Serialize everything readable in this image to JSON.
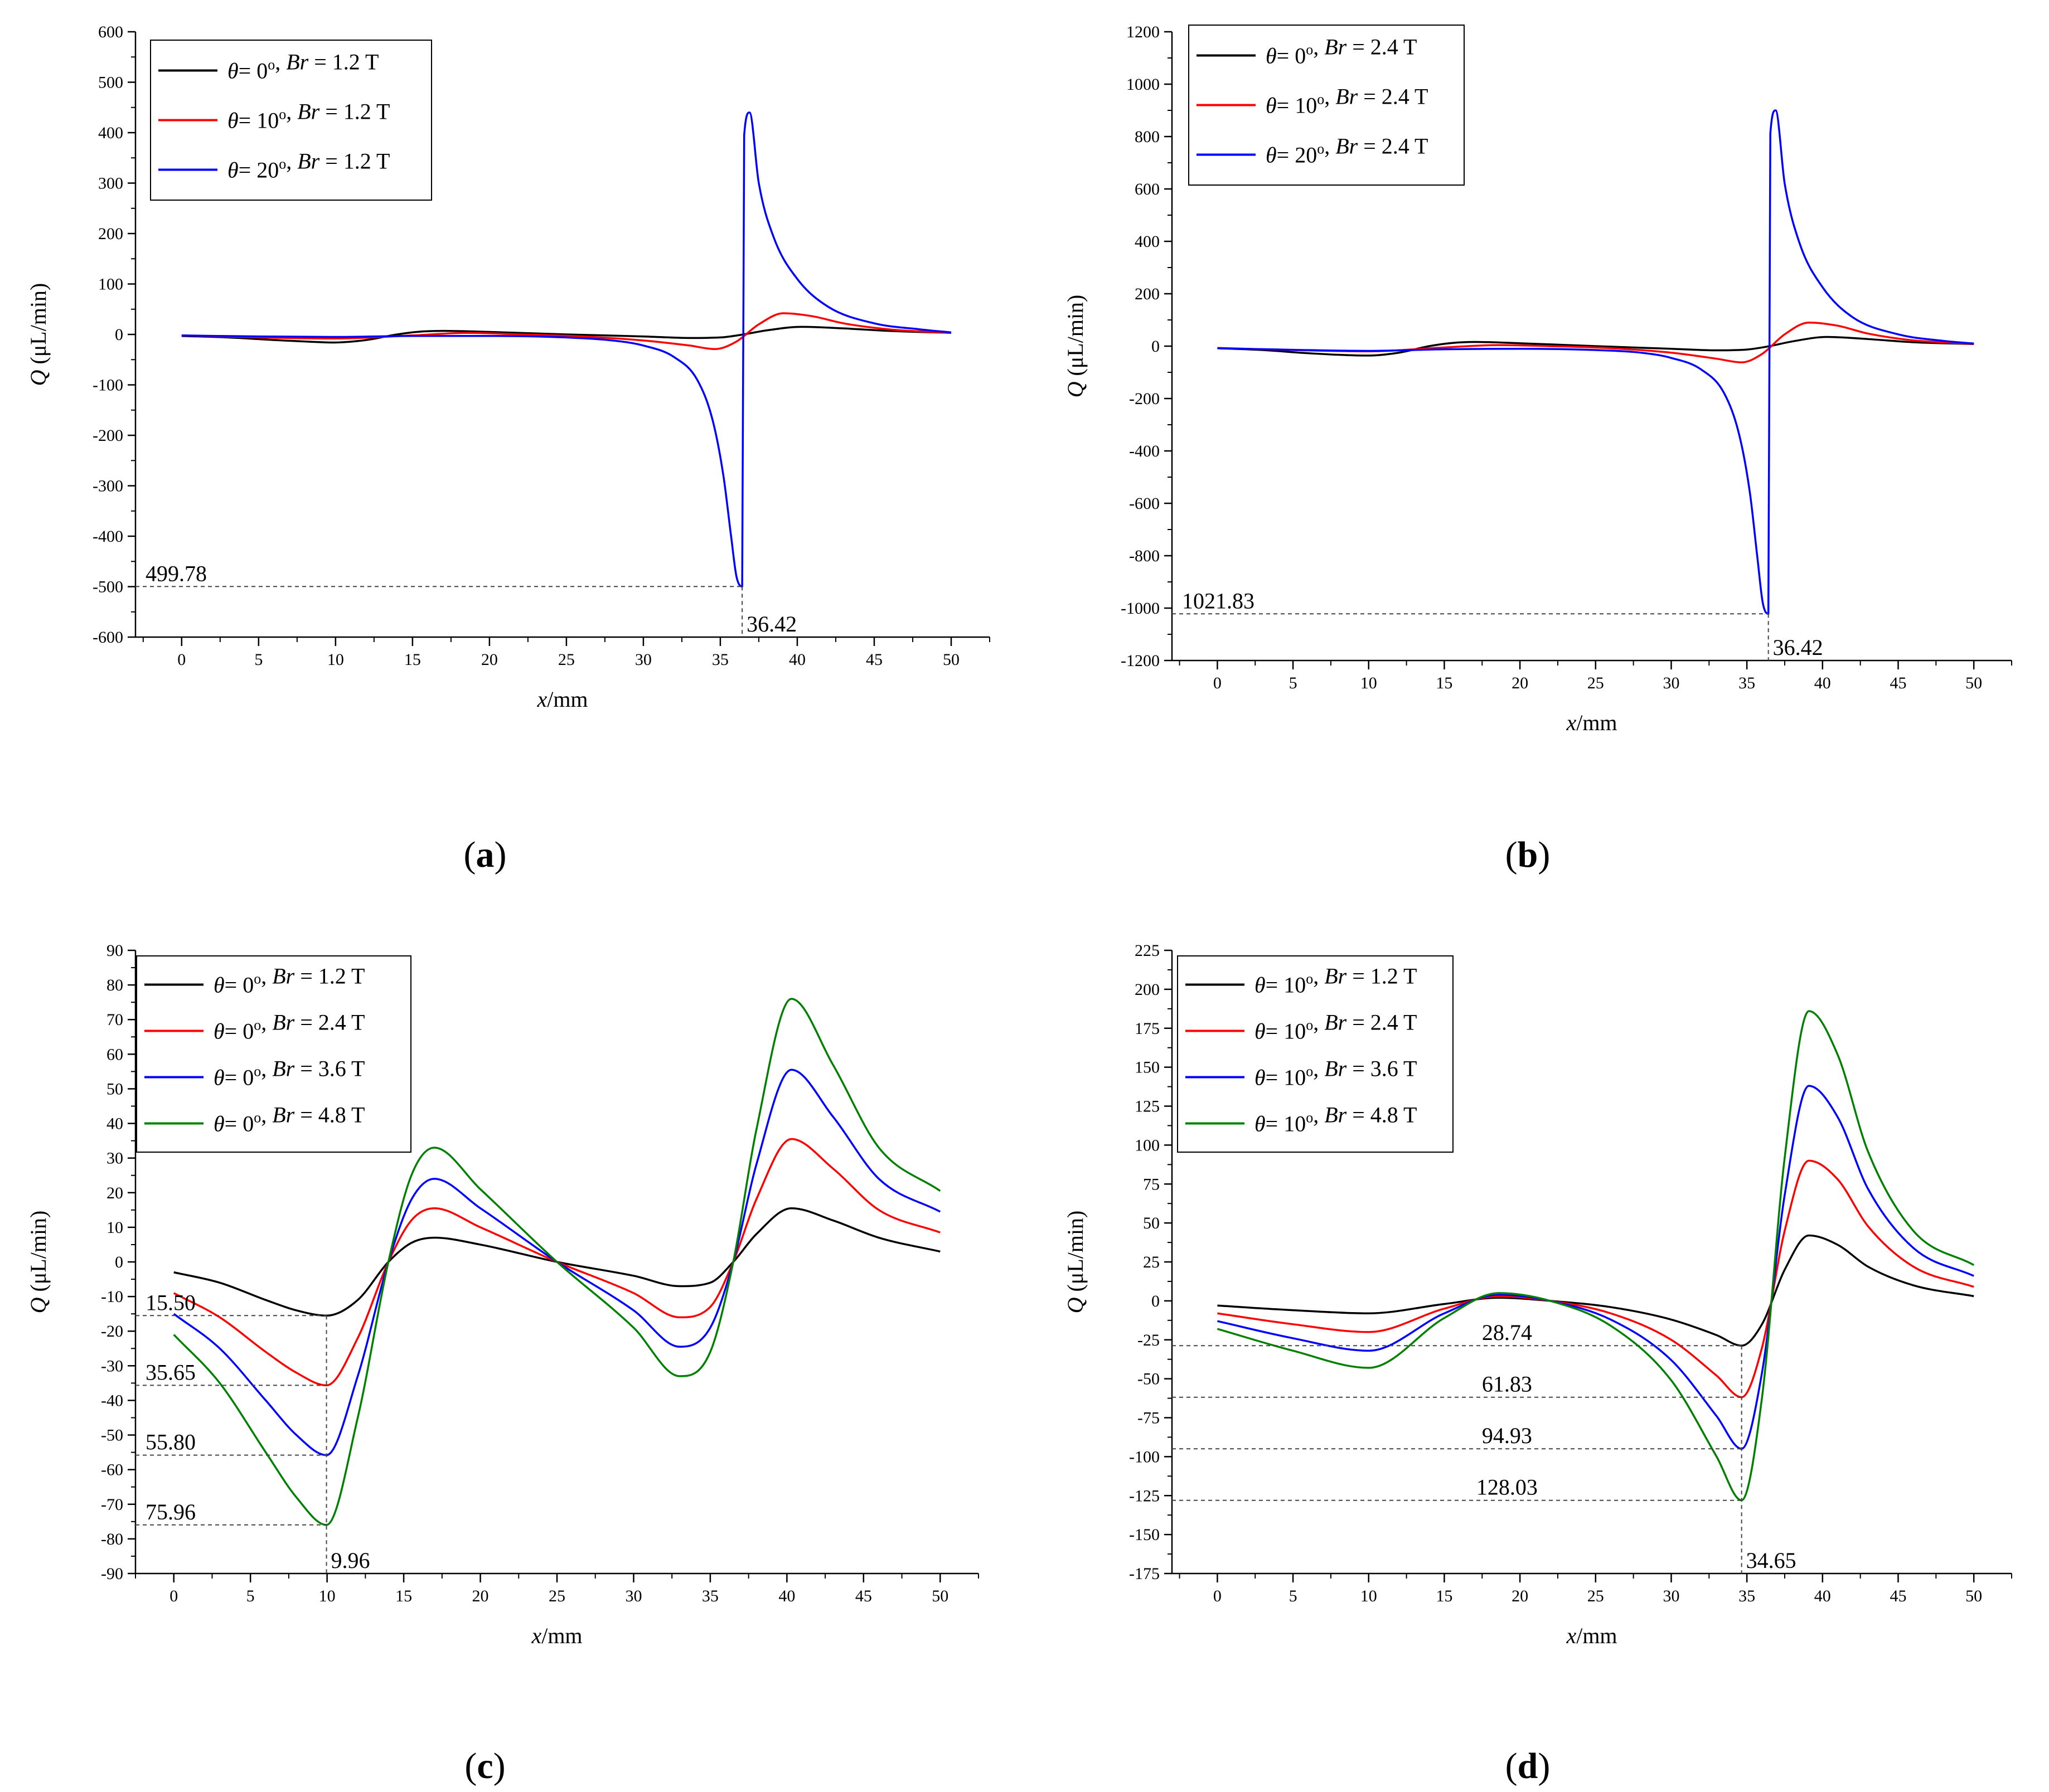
{
  "figure_labels": [
    "(a)",
    "(b)",
    "(c)",
    "(d)"
  ],
  "chart_data": [
    {
      "id": "a",
      "type": "line",
      "panel_label": "(a)",
      "xlabel": "x/mm",
      "ylabel": "Q (μL/min)",
      "xlim": [
        -3,
        52.5
      ],
      "ylim": [
        -600,
        600
      ],
      "xticks": [
        0,
        5,
        10,
        15,
        20,
        25,
        30,
        35,
        40,
        45,
        50
      ],
      "yticks": [
        -600,
        -500,
        -400,
        -300,
        -200,
        -100,
        0,
        100,
        200,
        300,
        400,
        500,
        600
      ],
      "legend": {
        "location": "top-left"
      },
      "series": [
        {
          "name": "θ= 0°, Br = 1.2 T",
          "theta": "0",
          "br": "1.2 T",
          "color": "#000000",
          "x": [
            0,
            3,
            6,
            8,
            9.96,
            12,
            14,
            15.5,
            17,
            20,
            25,
            30,
            33,
            35,
            36.5,
            38,
            40.3,
            43,
            46,
            50
          ],
          "y": [
            -3,
            -6,
            -11,
            -14,
            -16,
            -11,
            0,
            5.5,
            7,
            5,
            0,
            -4,
            -7,
            -6,
            0,
            8,
            15,
            12,
            7,
            3
          ]
        },
        {
          "name": "θ= 10°, Br = 1.2 T",
          "theta": "10",
          "br": "1.2 T",
          "color": "#ff0000",
          "x": [
            0,
            5,
            10,
            15,
            18.6,
            22,
            26,
            30,
            33,
            34.65,
            36,
            37.5,
            39.1,
            41,
            43,
            46,
            50
          ],
          "y": [
            -2,
            -6,
            -8,
            -2,
            3,
            0,
            -4,
            -12,
            -22,
            -29,
            -15,
            20,
            42,
            36,
            22,
            10,
            3
          ]
        },
        {
          "name": "θ= 20°, Br = 1.2 T",
          "theta": "20",
          "br": "1.2 T",
          "color": "#0000ff",
          "x": [
            0,
            5,
            10,
            15,
            20,
            25,
            28,
            30,
            32,
            33.5,
            34.5,
            35.2,
            35.7,
            36.05,
            36.42,
            36.55,
            36.9,
            37.5,
            38.5,
            40,
            42,
            45,
            48,
            50
          ],
          "y": [
            -2,
            -4,
            -5,
            -3,
            -3,
            -6,
            -12,
            -22,
            -45,
            -90,
            -170,
            -280,
            -400,
            -480,
            -499.78,
            395,
            440,
            300,
            190,
            110,
            55,
            22,
            10,
            4
          ]
        }
      ],
      "annotations": [
        {
          "text": "499.78",
          "y": -499.78
        },
        {
          "text": "36.42",
          "x": 36.42
        }
      ]
    },
    {
      "id": "b",
      "type": "line",
      "panel_label": "(b)",
      "xlabel": "x/mm",
      "ylabel": "Q (μL/min)",
      "xlim": [
        -3,
        52.5
      ],
      "ylim": [
        -1200,
        1200
      ],
      "xticks": [
        0,
        5,
        10,
        15,
        20,
        25,
        30,
        35,
        40,
        45,
        50
      ],
      "yticks": [
        -1200,
        -1000,
        -800,
        -600,
        -400,
        -200,
        0,
        200,
        400,
        600,
        800,
        1000,
        1200
      ],
      "legend": {
        "location": "top-left"
      },
      "series": [
        {
          "name": "θ= 0°, Br = 2.4 T",
          "theta": "0",
          "br": "2.4 T",
          "color": "#000000",
          "x": [
            0,
            3,
            6,
            8,
            9.96,
            12,
            14,
            15.5,
            17,
            20,
            25,
            30,
            33,
            35,
            36.5,
            38,
            40.3,
            43,
            46,
            50
          ],
          "y": [
            -8,
            -15,
            -27,
            -33,
            -36,
            -25,
            0,
            12,
            16,
            11,
            0,
            -10,
            -16,
            -13,
            0,
            18,
            35,
            27,
            15,
            8
          ]
        },
        {
          "name": "θ= 10°, Br = 2.4 T",
          "theta": "10",
          "br": "2.4 T",
          "color": "#ff0000",
          "x": [
            0,
            5,
            10,
            15,
            18.6,
            22,
            26,
            30,
            33,
            34.65,
            36,
            37.5,
            39.1,
            41,
            43,
            46,
            50
          ],
          "y": [
            -7,
            -15,
            -20,
            -5,
            4,
            0,
            -8,
            -25,
            -48,
            -62,
            -30,
            45,
            90,
            78,
            48,
            22,
            9
          ]
        },
        {
          "name": "θ= 20°, Br = 2.4 T",
          "theta": "20",
          "br": "2.4 T",
          "color": "#0000ff",
          "x": [
            0,
            5,
            10,
            15,
            20,
            25,
            28,
            30,
            32,
            33.5,
            34.5,
            35.2,
            35.7,
            36.05,
            36.42,
            36.55,
            36.9,
            37.5,
            38.5,
            40,
            42,
            45,
            48,
            50
          ],
          "y": [
            -8,
            -14,
            -18,
            -12,
            -10,
            -15,
            -25,
            -45,
            -90,
            -180,
            -340,
            -560,
            -810,
            -980,
            -1021.83,
            810,
            900,
            620,
            390,
            225,
            110,
            45,
            20,
            10
          ]
        }
      ],
      "annotations": [
        {
          "text": "1021.83",
          "y": -1021.83
        },
        {
          "text": "36.42",
          "x": 36.42
        }
      ]
    },
    {
      "id": "c",
      "type": "line",
      "panel_label": "(c)",
      "xlabel": "x/mm",
      "ylabel": "Q (μL/min)",
      "xlim": [
        -2.5,
        52.5
      ],
      "ylim": [
        -90,
        90
      ],
      "xticks": [
        0,
        5,
        10,
        15,
        20,
        25,
        30,
        35,
        40,
        45,
        50
      ],
      "yticks": [
        -90,
        -80,
        -70,
        -60,
        -50,
        -40,
        -30,
        -20,
        -10,
        0,
        10,
        20,
        30,
        40,
        50,
        60,
        70,
        80,
        90
      ],
      "legend": {
        "location": "top-left"
      },
      "series": [
        {
          "name": "θ= 0°, Br = 1.2 T",
          "theta": "0",
          "br": "1.2 T",
          "color": "#000000",
          "x": [
            0,
            3,
            6,
            8,
            9.96,
            12,
            14,
            15.5,
            17,
            20,
            25,
            30,
            33,
            35,
            36.5,
            38,
            40.3,
            43,
            46,
            50
          ],
          "y": [
            -3,
            -6,
            -11,
            -14,
            -15.5,
            -11,
            0,
            5.5,
            7,
            5,
            0,
            -4,
            -7,
            -6,
            0,
            8,
            15.5,
            12,
            7,
            3
          ]
        },
        {
          "name": "θ= 0°, Br = 2.4 T",
          "theta": "0",
          "br": "2.4 T",
          "color": "#ff0000",
          "x": [
            0,
            3,
            6,
            8,
            9.96,
            12,
            14,
            15.5,
            17,
            20,
            25,
            30,
            33,
            35,
            36.5,
            38,
            40.3,
            43,
            46,
            50
          ],
          "y": [
            -9,
            -16,
            -26,
            -32,
            -35.65,
            -22,
            0,
            12,
            15.5,
            10,
            0,
            -9,
            -16,
            -13,
            0,
            18,
            35.5,
            27,
            15,
            8.5
          ]
        },
        {
          "name": "θ= 0°, Br = 3.6 T",
          "theta": "0",
          "br": "3.6 T",
          "color": "#0000ff",
          "x": [
            0,
            3,
            6,
            8,
            9.96,
            12,
            14,
            15.5,
            17,
            20,
            25,
            30,
            33,
            35,
            36.5,
            38,
            40.3,
            43,
            46,
            50
          ],
          "y": [
            -15,
            -25,
            -40,
            -50,
            -55.8,
            -33,
            0,
            18,
            24,
            15.5,
            0,
            -14,
            -24.5,
            -19,
            0,
            28,
            55.5,
            42,
            24,
            14.5
          ]
        },
        {
          "name": "θ= 0°, Br = 4.8 T",
          "theta": "0",
          "br": "4.8 T",
          "color": "#008000",
          "x": [
            0,
            3,
            6,
            8,
            9.96,
            12,
            14,
            15.5,
            17,
            20,
            25,
            30,
            33,
            35,
            36.5,
            38,
            40.3,
            43,
            46,
            50
          ],
          "y": [
            -21,
            -35,
            -55,
            -68,
            -75.96,
            -45,
            0,
            25,
            33,
            21,
            0,
            -19,
            -33,
            -26,
            0,
            38,
            76,
            57,
            33,
            20.5
          ]
        }
      ],
      "annotations": [
        {
          "text": "15.50",
          "y": -15.5
        },
        {
          "text": "35.65",
          "y": -35.65
        },
        {
          "text": "55.80",
          "y": -55.8
        },
        {
          "text": "75.96",
          "y": -75.96
        },
        {
          "text": "9.96",
          "x": 9.96
        }
      ]
    },
    {
      "id": "d",
      "type": "line",
      "panel_label": "(d)",
      "xlabel": "x/mm",
      "ylabel": "Q (μL/min)",
      "xlim": [
        -3,
        52.5
      ],
      "ylim": [
        -175,
        225
      ],
      "xticks": [
        0,
        5,
        10,
        15,
        20,
        25,
        30,
        35,
        40,
        45,
        50
      ],
      "yticks": [
        -175,
        -150,
        -125,
        -100,
        -75,
        -50,
        -25,
        0,
        25,
        50,
        75,
        100,
        125,
        150,
        175,
        200,
        225
      ],
      "legend": {
        "location": "top-left"
      },
      "series": [
        {
          "name": "θ= 10°, Br = 1.2 T",
          "theta": "10",
          "br": "1.2 T",
          "color": "#000000",
          "x": [
            0,
            5,
            10,
            15,
            18.6,
            22,
            26,
            30,
            33,
            34.65,
            36,
            37.5,
            39.1,
            41,
            43,
            46,
            50
          ],
          "y": [
            -3,
            -6,
            -8,
            -2,
            2,
            0,
            -4,
            -12,
            -22,
            -28.74,
            -15,
            20,
            42,
            36,
            22,
            10,
            3
          ]
        },
        {
          "name": "θ= 10°, Br = 2.4 T",
          "theta": "10",
          "br": "2.4 T",
          "color": "#ff0000",
          "x": [
            0,
            5,
            10,
            15,
            18.6,
            22,
            26,
            30,
            33,
            34.65,
            36,
            37.5,
            39.1,
            41,
            43,
            46,
            50
          ],
          "y": [
            -8,
            -15,
            -20,
            -5,
            3,
            0,
            -8,
            -25,
            -48,
            -61.83,
            -30,
            45,
            90,
            78,
            48,
            22,
            9
          ]
        },
        {
          "name": "θ= 10°, Br = 3.6 T",
          "theta": "10",
          "br": "3.6 T",
          "color": "#0000ff",
          "x": [
            0,
            5,
            10,
            15,
            18.6,
            22,
            26,
            30,
            33,
            34.65,
            36,
            37.5,
            39.1,
            41,
            43,
            46,
            50
          ],
          "y": [
            -13,
            -24,
            -32,
            -8,
            4,
            0,
            -12,
            -38,
            -74,
            -94.93,
            -46,
            68,
            138,
            118,
            72,
            34,
            16
          ]
        },
        {
          "name": "θ= 10°, Br = 4.8 T",
          "theta": "10",
          "br": "4.8 T",
          "color": "#008000",
          "x": [
            0,
            5,
            10,
            15,
            18.6,
            22,
            26,
            30,
            33,
            34.65,
            36,
            37.5,
            39.1,
            41,
            43,
            46,
            50
          ],
          "y": [
            -18,
            -32,
            -43,
            -11,
            5,
            0,
            -16,
            -51,
            -100,
            -128.03,
            -62,
            92,
            186,
            158,
            96,
            45,
            23
          ]
        }
      ],
      "annotations": [
        {
          "text": "28.74",
          "y": -28.74
        },
        {
          "text": "61.83",
          "y": -61.83
        },
        {
          "text": "94.93",
          "y": -94.93
        },
        {
          "text": "128.03",
          "y": -128.03
        },
        {
          "text": "34.65",
          "x": 34.65
        }
      ]
    }
  ]
}
